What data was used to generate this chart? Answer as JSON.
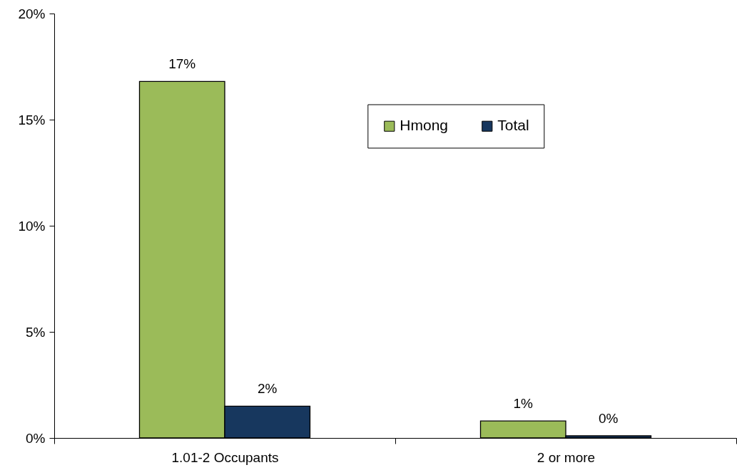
{
  "chart_data": {
    "type": "bar",
    "categories": [
      "1.01-2 Occupants",
      "2 or more"
    ],
    "series": [
      {
        "name": "Hmong",
        "color": "#9bbb59",
        "values": [
          16.8,
          0.8
        ],
        "value_labels": [
          "17%",
          "1%"
        ]
      },
      {
        "name": "Total",
        "color": "#17375e",
        "values": [
          1.5,
          0.1
        ],
        "value_labels": [
          "2%",
          "0%"
        ]
      }
    ],
    "ylim": [
      0,
      20
    ],
    "yticks": [
      {
        "value": 0,
        "label": "0%"
      },
      {
        "value": 5,
        "label": "5%"
      },
      {
        "value": 10,
        "label": "10%"
      },
      {
        "value": 15,
        "label": "15%"
      },
      {
        "value": 20,
        "label": "20%"
      }
    ],
    "grid": false,
    "legend": "top right"
  }
}
